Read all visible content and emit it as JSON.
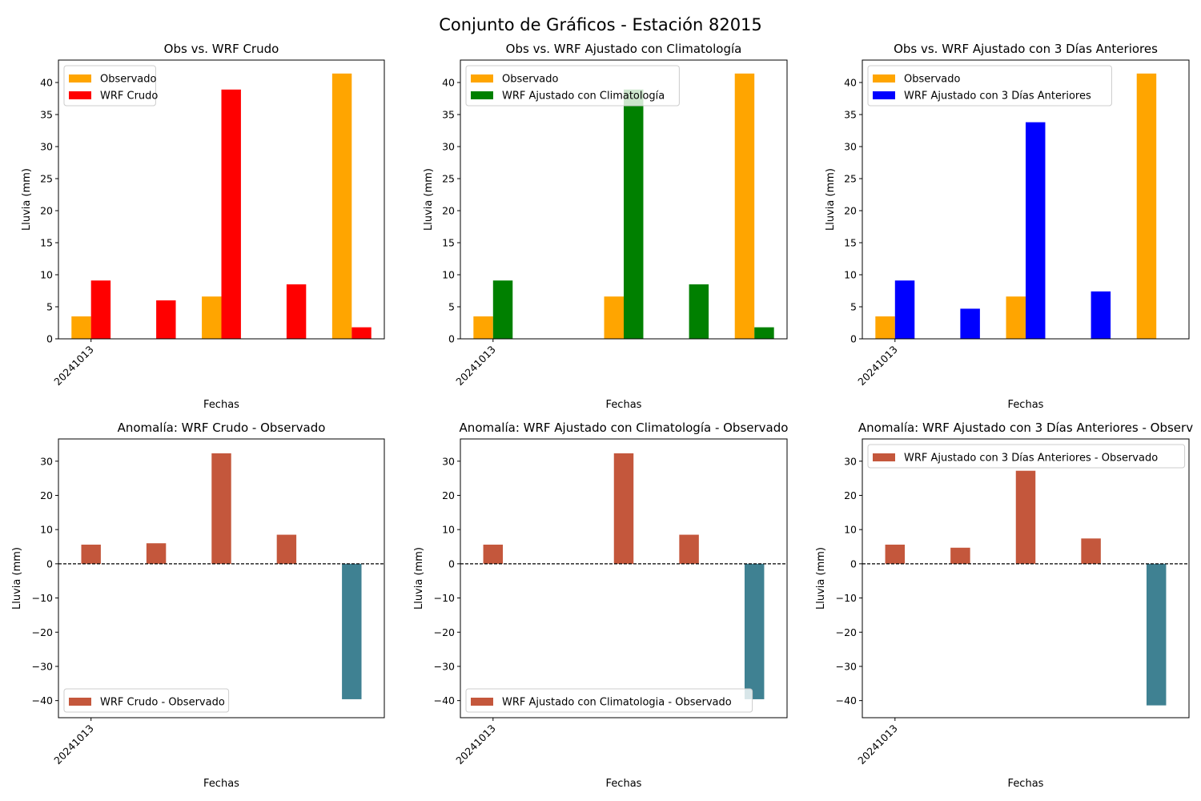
{
  "suptitle": "Conjunto de Gráficos - Estación 82015",
  "colors": {
    "obs": "#ffa500",
    "raw": "#ff0000",
    "clim": "#008000",
    "prev": "#0000ff",
    "anom_pos": "#c4573c",
    "anom_neg": "#3f8192"
  },
  "chart_data": [
    {
      "type": "bar",
      "title": "Obs vs. WRF Crudo",
      "xlabel": "Fechas",
      "ylabel": "Lluvia (mm)",
      "xtick_label": "20241013",
      "ylim": [
        0,
        43.5
      ],
      "yticks": [
        0,
        5,
        10,
        15,
        20,
        25,
        30,
        35,
        40
      ],
      "legend_position": "upper-left",
      "series": [
        {
          "name": "Observado",
          "color": "#ffa500",
          "values": [
            3.5,
            0,
            6.6,
            0,
            41.4
          ]
        },
        {
          "name": "WRF Crudo",
          "color": "#ff0000",
          "values": [
            9.1,
            6.0,
            38.9,
            8.5,
            1.8
          ]
        }
      ]
    },
    {
      "type": "bar",
      "title": "Obs vs. WRF Ajustado con Climatología",
      "xlabel": "Fechas",
      "ylabel": "Lluvia (mm)",
      "xtick_label": "20241013",
      "ylim": [
        0,
        43.5
      ],
      "yticks": [
        0,
        5,
        10,
        15,
        20,
        25,
        30,
        35,
        40
      ],
      "legend_position": "upper-left",
      "series": [
        {
          "name": "Observado",
          "color": "#ffa500",
          "values": [
            3.5,
            0,
            6.6,
            0,
            41.4
          ]
        },
        {
          "name": "WRF Ajustado con Climatología",
          "color": "#008000",
          "values": [
            9.1,
            0,
            38.9,
            8.5,
            1.8
          ]
        }
      ]
    },
    {
      "type": "bar",
      "title": "Obs vs. WRF Ajustado con 3 Días Anteriores",
      "xlabel": "Fechas",
      "ylabel": "Lluvia (mm)",
      "xtick_label": "20241013",
      "ylim": [
        0,
        43.5
      ],
      "yticks": [
        0,
        5,
        10,
        15,
        20,
        25,
        30,
        35,
        40
      ],
      "legend_position": "upper-left",
      "series": [
        {
          "name": "Observado",
          "color": "#ffa500",
          "values": [
            3.5,
            0,
            6.6,
            0,
            41.4
          ]
        },
        {
          "name": "WRF Ajustado con 3 Días Anteriores",
          "color": "#0000ff",
          "values": [
            9.1,
            4.7,
            33.8,
            7.4,
            0
          ]
        }
      ]
    },
    {
      "type": "bar",
      "title": "Anomalía: WRF Crudo - Observado",
      "xlabel": "Fechas",
      "ylabel": "Lluvia (mm)",
      "xtick_label": "20241013",
      "ylim": [
        -45,
        36.5
      ],
      "yticks": [
        -40,
        -30,
        -20,
        -10,
        0,
        10,
        20,
        30
      ],
      "legend_position": "lower-left",
      "zero_line": true,
      "series": [
        {
          "name": "WRF Crudo - Observado",
          "values": [
            5.6,
            6.0,
            32.3,
            8.5,
            -39.6
          ]
        }
      ]
    },
    {
      "type": "bar",
      "title": "Anomalía: WRF Ajustado con Climatología - Observado",
      "xlabel": "Fechas",
      "ylabel": "Lluvia (mm)",
      "xtick_label": "20241013",
      "ylim": [
        -45,
        36.5
      ],
      "yticks": [
        -40,
        -30,
        -20,
        -10,
        0,
        10,
        20,
        30
      ],
      "legend_position": "lower-left",
      "zero_line": true,
      "series": [
        {
          "name": "WRF Ajustado con Climatologia - Observado",
          "values": [
            5.6,
            0,
            32.3,
            8.5,
            -39.6
          ]
        }
      ]
    },
    {
      "type": "bar",
      "title": "Anomalía: WRF Ajustado con 3 Días Anteriores - Observ",
      "xlabel": "Fechas",
      "ylabel": "Lluvia (mm)",
      "xtick_label": "20241013",
      "ylim": [
        -45,
        36.5
      ],
      "yticks": [
        -40,
        -30,
        -20,
        -10,
        0,
        10,
        20,
        30
      ],
      "legend_position": "upper-left",
      "zero_line": true,
      "series": [
        {
          "name": "WRF Ajustado con 3 Días Anteriores - Observado",
          "values": [
            5.6,
            4.7,
            27.2,
            7.4,
            -41.4
          ]
        }
      ]
    }
  ]
}
